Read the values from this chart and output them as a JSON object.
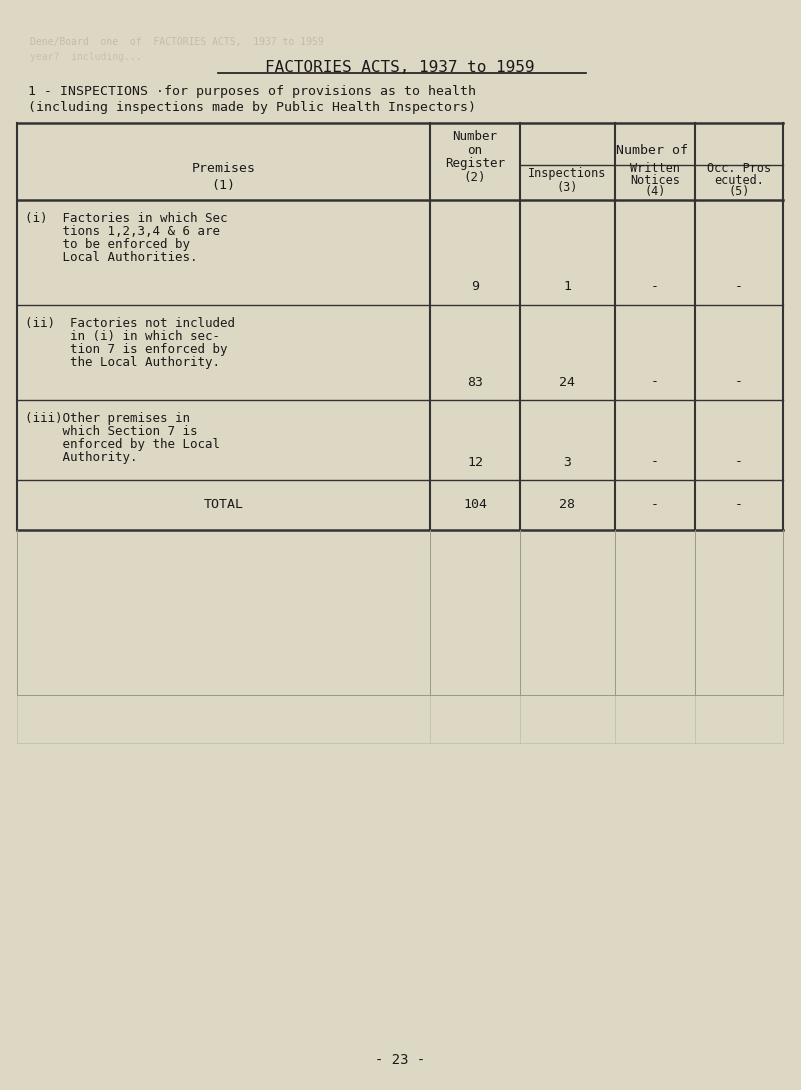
{
  "title": "FACTORIES ACTS, 1937 to 1959",
  "subtitle_line1": "1 - INSPECTIONS ·for purposes of provisions as to health",
  "subtitle_line2": "(including inspections made by Public Health Inspectors)",
  "rows": [
    {
      "label_lines": [
        "(i)  Factories in which Sec",
        "     tions 1,2,3,4 & 6 are",
        "     to be enforced by",
        "     Local Authorities."
      ],
      "col2": "9",
      "col3": "1",
      "col4": "-",
      "col5": "-"
    },
    {
      "label_lines": [
        "(ii)  Factories not included",
        "      in (i) in which sec-",
        "      tion 7 is enforced by",
        "      the Local Authority."
      ],
      "col2": "83",
      "col3": "24",
      "col4": "-",
      "col5": "-"
    },
    {
      "label_lines": [
        "(iii)Other premises in",
        "     which Section 7 is",
        "     enforced by the Local",
        "     Authority."
      ],
      "col2": "12",
      "col3": "3",
      "col4": "-",
      "col5": "-"
    }
  ],
  "total_row": {
    "label": "TOTAL",
    "col2": "104",
    "col3": "28",
    "col4": "-",
    "col5": "-"
  },
  "page_number": "- 23 -",
  "bg_color": "#ddd8c4",
  "text_color": "#1a1a1a",
  "table_line_color": "#333333",
  "faint_line_color": "#999988",
  "very_faint_color": "#bbbbaa"
}
